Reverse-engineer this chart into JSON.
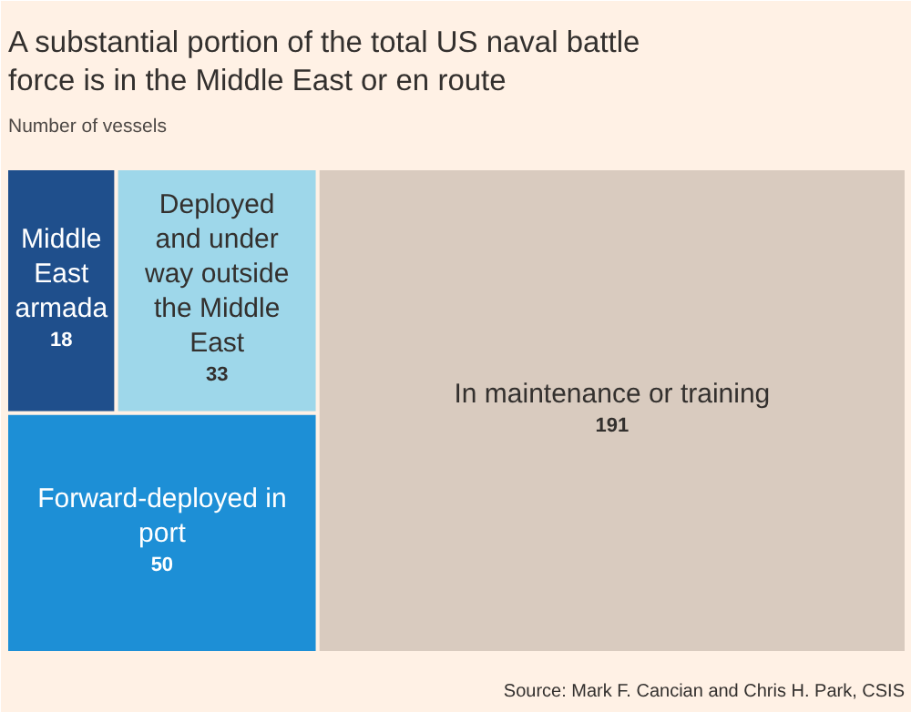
{
  "chart_data": {
    "type": "other",
    "title": "A substantial portion of the total US naval battle force is in the Middle East or en route",
    "subtitle": "Number of vessels",
    "categories": [
      "Middle East armada",
      "Deployed and under way outside the Middle East",
      "Forward-deployed in port",
      "In maintenance or training"
    ],
    "values": [
      18,
      33,
      50,
      191
    ],
    "colors": [
      "#1f4f8c",
      "#9ed7ea",
      "#1d8fd6",
      "#d9cbbf"
    ],
    "data_labels": true,
    "annotations": [
      "Source: Mark F. Cancian and Chris H. Park, CSIS"
    ]
  }
}
